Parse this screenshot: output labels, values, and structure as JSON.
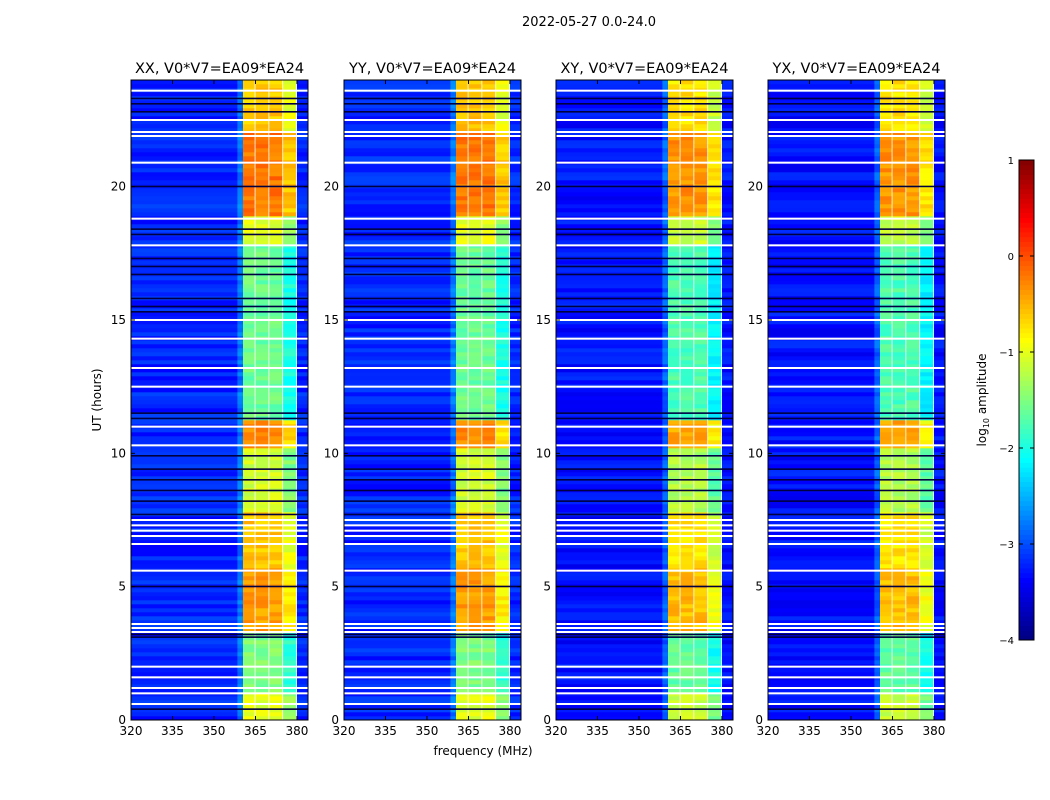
{
  "chart_data": {
    "type": "heatmap",
    "suptitle": "2022-05-27 0.0-24.0",
    "xlabel": "frequency (MHz)",
    "ylabel": "UT (hours)",
    "xlim": [
      320,
      384
    ],
    "ylim": [
      0,
      24
    ],
    "xticks": [
      320,
      335,
      350,
      365,
      380
    ],
    "yticks": [
      0,
      5,
      10,
      15,
      20
    ],
    "panels": [
      {
        "title": "XX, V0*V7=EA09*EA24",
        "pol": "XX"
      },
      {
        "title": "YY, V0*V7=EA09*EA24",
        "pol": "YY"
      },
      {
        "title": "XY, V0*V7=EA09*EA24",
        "pol": "XY"
      },
      {
        "title": "YX, V0*V7=EA09*EA24",
        "pol": "YX"
      }
    ],
    "colorbar": {
      "label_main": "log",
      "label_sub": "10",
      "label_rest": " amplitude",
      "range": [
        -4,
        1
      ],
      "ticks": [
        -4,
        -3,
        -2,
        -1,
        0,
        1
      ],
      "colormap": "jet"
    },
    "background_level": -3.2,
    "rfi_band_mhz": [
      360.5,
      380
    ],
    "rfi_subband_edges_mhz": [
      360.5,
      365,
      370,
      375,
      380
    ],
    "rfi_levels_by_time": [
      {
        "from": 0,
        "to": 1,
        "level": -1.0
      },
      {
        "from": 1,
        "to": 3.2,
        "level": -1.5
      },
      {
        "from": 3.2,
        "to": 5.6,
        "level": -0.4
      },
      {
        "from": 5.6,
        "to": 7.7,
        "level": -0.6
      },
      {
        "from": 7.7,
        "to": 10.2,
        "level": -1.1
      },
      {
        "from": 10.2,
        "to": 11.2,
        "level": -0.3
      },
      {
        "from": 11.2,
        "to": 17.8,
        "level": -1.6
      },
      {
        "from": 17.8,
        "to": 18.8,
        "level": -1.0
      },
      {
        "from": 18.8,
        "to": 22,
        "level": -0.2
      },
      {
        "from": 22,
        "to": 24,
        "level": -0.6
      }
    ],
    "flagged_white_hours": [
      0.6,
      1.0,
      1.2,
      1.6,
      2.0,
      3.3,
      3.45,
      3.6,
      5.6,
      6.6,
      6.9,
      7.1,
      7.3,
      7.5,
      10.3,
      11.0,
      12.5,
      13.2,
      14.3,
      15.0,
      17.8,
      18.8,
      20.9,
      21.9,
      22.05,
      22.5,
      23.6
    ],
    "dark_hours": [
      0.4,
      3.1,
      3.2,
      5.0,
      7.7,
      8.2,
      8.6,
      9.0,
      9.4,
      9.9,
      11.3,
      11.5,
      15.3,
      15.5,
      15.8,
      16.7,
      17.0,
      17.3,
      18.2,
      18.4,
      20.0,
      22.8,
      23.1,
      23.3
    ]
  }
}
